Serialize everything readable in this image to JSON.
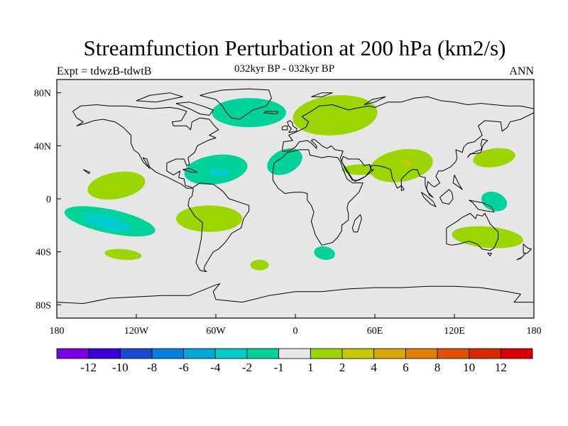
{
  "title": "Streamfunction Perturbation at 200 hPa (km2/s)",
  "experiment_label": "Expt = tdwzB-tdwtB",
  "period_label": "032kyr BP - 032kyr BP",
  "season_label": "ANN",
  "map": {
    "projection": "cylindrical-equidistant",
    "lon_range": [
      -180,
      180
    ],
    "lat_range": [
      -90,
      90
    ],
    "ocean_land_fill": "#e6e6e6",
    "coastline_color": "#000000",
    "lat_ticks": [
      {
        "value": 80,
        "label": "80N"
      },
      {
        "value": 40,
        "label": "40N"
      },
      {
        "value": 0,
        "label": "0"
      },
      {
        "value": -40,
        "label": "40S"
      },
      {
        "value": -80,
        "label": "80S"
      }
    ],
    "lon_ticks": [
      {
        "value": -180,
        "label": "180"
      },
      {
        "value": -120,
        "label": "120W"
      },
      {
        "value": -60,
        "label": "60W"
      },
      {
        "value": 0,
        "label": "0"
      },
      {
        "value": 60,
        "label": "60E"
      },
      {
        "value": 120,
        "label": "120E"
      },
      {
        "value": 180,
        "label": "180"
      }
    ],
    "anomaly_regions": [
      {
        "center_lon": -140,
        "center_lat": -17,
        "radius_lon": 35,
        "radius_lat": 9,
        "rotate": 12,
        "level": "-2..-1",
        "color": "#00d39a"
      },
      {
        "center_lon": -142,
        "center_lat": -18,
        "radius_lon": 18,
        "radius_lat": 5,
        "rotate": 14,
        "level": "-4..-2",
        "color": "#00cccc"
      },
      {
        "center_lon": -135,
        "center_lat": 10,
        "radius_lon": 22,
        "radius_lat": 10,
        "rotate": -10,
        "level": "1..2",
        "color": "#9cd600"
      },
      {
        "center_lon": -130,
        "center_lat": -42,
        "radius_lon": 14,
        "radius_lat": 4,
        "rotate": 5,
        "level": "1..2",
        "color": "#9cd600"
      },
      {
        "center_lon": -65,
        "center_lat": -15,
        "radius_lon": 25,
        "radius_lat": 10,
        "rotate": 0,
        "level": "1..2",
        "color": "#9cd600"
      },
      {
        "center_lon": -60,
        "center_lat": 22,
        "radius_lon": 24,
        "radius_lat": 11,
        "rotate": -8,
        "level": "-2..-1",
        "color": "#00d39a"
      },
      {
        "center_lon": -57,
        "center_lat": 20,
        "radius_lon": 8,
        "radius_lat": 3,
        "rotate": 0,
        "level": "-4..-2",
        "color": "#00cccc"
      },
      {
        "center_lon": -35,
        "center_lat": 65,
        "radius_lon": 28,
        "radius_lat": 11,
        "rotate": 0,
        "level": "-2..-1",
        "color": "#00d39a"
      },
      {
        "center_lon": -8,
        "center_lat": 28,
        "radius_lon": 14,
        "radius_lat": 9,
        "rotate": -25,
        "level": "-2..-1",
        "color": "#00d39a"
      },
      {
        "center_lon": -27,
        "center_lat": -50,
        "radius_lon": 7,
        "radius_lat": 4,
        "rotate": 0,
        "level": "1..2",
        "color": "#9cd600"
      },
      {
        "center_lon": 22,
        "center_lat": -41,
        "radius_lon": 8,
        "radius_lat": 5,
        "rotate": 10,
        "level": "-2..-1",
        "color": "#00d39a"
      },
      {
        "center_lon": 30,
        "center_lat": 63,
        "radius_lon": 32,
        "radius_lat": 15,
        "rotate": -5,
        "level": "1..2",
        "color": "#9cd600"
      },
      {
        "center_lon": 80,
        "center_lat": 25,
        "radius_lon": 24,
        "radius_lat": 12,
        "rotate": -10,
        "level": "1..2",
        "color": "#9cd600"
      },
      {
        "center_lon": 50,
        "center_lat": 22,
        "radius_lon": 15,
        "radius_lat": 4,
        "rotate": 0,
        "level": "1..2",
        "color": "#9cd600"
      },
      {
        "center_lon": 84,
        "center_lat": 27,
        "radius_lon": 4,
        "radius_lat": 2,
        "rotate": 0,
        "level": "2..4",
        "color": "#c8c800"
      },
      {
        "center_lon": 150,
        "center_lat": 31,
        "radius_lon": 16,
        "radius_lat": 7,
        "rotate": -8,
        "level": "1..2",
        "color": "#9cd600"
      },
      {
        "center_lon": 150,
        "center_lat": -2,
        "radius_lon": 10,
        "radius_lat": 7,
        "rotate": 20,
        "level": "-2..-1",
        "color": "#00d39a"
      },
      {
        "center_lon": 145,
        "center_lat": -29,
        "radius_lon": 27,
        "radius_lat": 8,
        "rotate": 5,
        "level": "1..2",
        "color": "#9cd600"
      }
    ]
  },
  "colorbar": {
    "colors": [
      "#7b00e0",
      "#3a00d8",
      "#1a4ad0",
      "#0080e0",
      "#00a8d8",
      "#00cccc",
      "#00d39a",
      "#e6e6e6",
      "#9cd600",
      "#c8c800",
      "#d8a800",
      "#e08000",
      "#e05000",
      "#d82800",
      "#d80000"
    ],
    "labels": [
      "-12",
      "-10",
      "-8",
      "-6",
      "-4",
      "-2",
      "-1",
      "1",
      "2",
      "4",
      "6",
      "8",
      "10",
      "12"
    ]
  }
}
